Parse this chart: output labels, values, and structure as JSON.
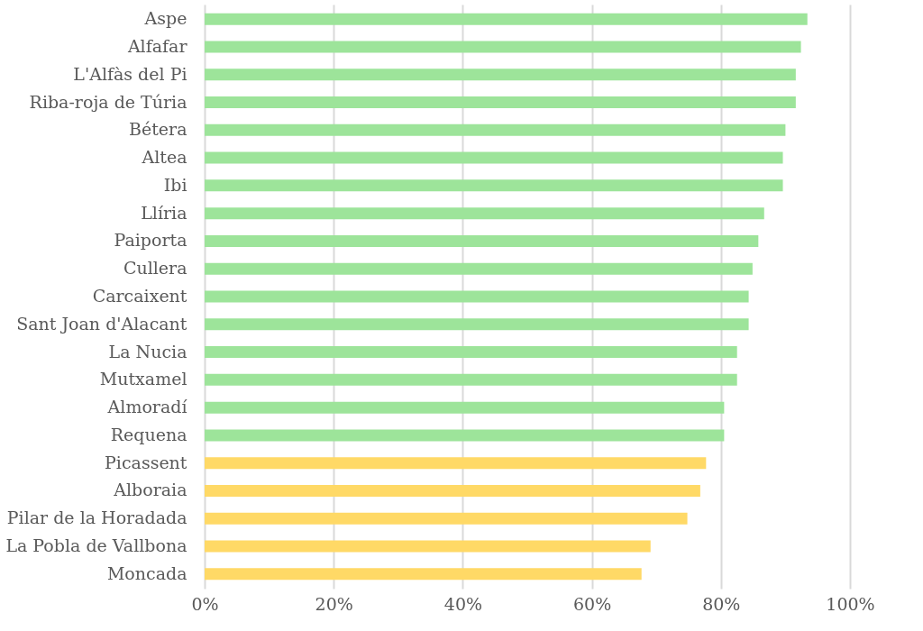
{
  "chart_data": {
    "type": "bar",
    "orientation": "horizontal",
    "categories": [
      "Aspe",
      "Alfafar",
      "L'Alfàs del Pi",
      "Riba-roja de Túria",
      "Bétera",
      "Altea",
      "Ibi",
      "Llíria",
      "Paiporta",
      "Cullera",
      "Carcaixent",
      "Sant Joan d'Alacant",
      "La Nucia",
      "Mutxamel",
      "Almoradí",
      "Requena",
      "Picassent",
      "Alboraia",
      "Pilar de la Horadada",
      "La Pobla de Vallbona",
      "Moncada"
    ],
    "values": [
      93.4,
      92.4,
      91.6,
      91.6,
      90.0,
      89.6,
      89.6,
      86.7,
      85.8,
      84.9,
      84.3,
      84.3,
      82.5,
      82.5,
      80.5,
      80.5,
      77.7,
      76.8,
      74.8,
      69.1,
      67.7
    ],
    "colors": [
      "#9de49a",
      "#9de49a",
      "#9de49a",
      "#9de49a",
      "#9de49a",
      "#9de49a",
      "#9de49a",
      "#9de49a",
      "#9de49a",
      "#9de49a",
      "#9de49a",
      "#9de49a",
      "#9de49a",
      "#9de49a",
      "#9de49a",
      "#9de49a",
      "#ffd966",
      "#ffd966",
      "#ffd966",
      "#ffd966",
      "#ffd966"
    ],
    "xlim": [
      0,
      100
    ],
    "xticks": [
      {
        "value": 0,
        "label": "0%"
      },
      {
        "value": 20,
        "label": "20%"
      },
      {
        "value": 40,
        "label": "40%"
      },
      {
        "value": 60,
        "label": "60%"
      },
      {
        "value": 80,
        "label": "80%"
      },
      {
        "value": 100,
        "label": "100%"
      }
    ],
    "grid": "x"
  }
}
